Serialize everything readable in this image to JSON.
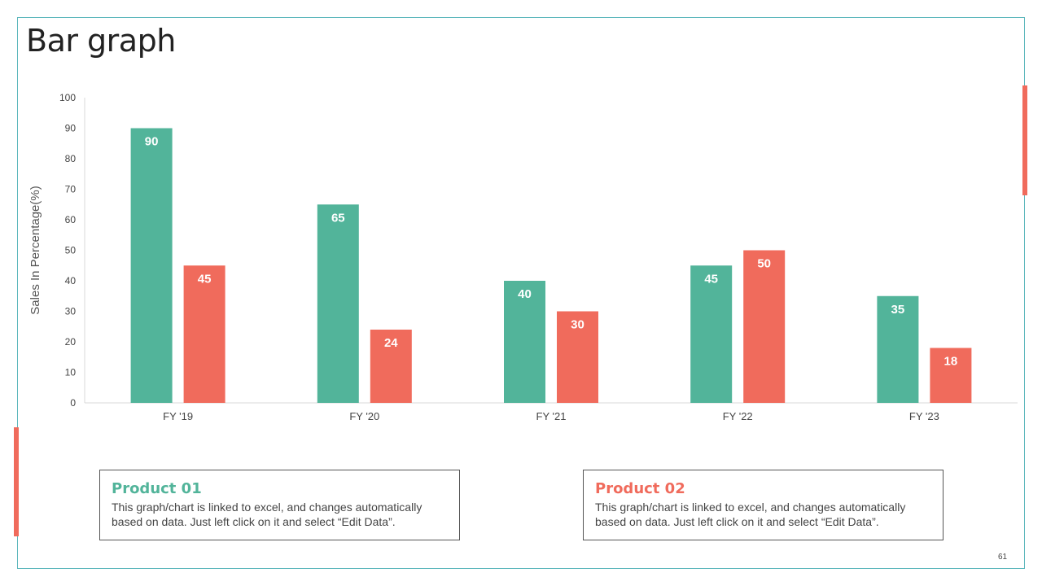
{
  "slide": {
    "title": "Bar graph",
    "page_number": "61"
  },
  "colors": {
    "product1": "#52b49a",
    "product2": "#f06b5c",
    "frame": "#5fb8bd"
  },
  "chart_data": {
    "type": "bar",
    "categories": [
      "FY '19",
      "FY '20",
      "FY '21",
      "FY '22",
      "FY '23"
    ],
    "series": [
      {
        "name": "Product 01",
        "values": [
          90,
          65,
          40,
          45,
          35
        ]
      },
      {
        "name": "Product 02",
        "values": [
          45,
          24,
          30,
          50,
          18
        ]
      }
    ],
    "ylabel": "Sales In Percentage(%)",
    "ylim": [
      0,
      100
    ],
    "yticks": [
      0,
      10,
      20,
      30,
      40,
      50,
      60,
      70,
      80,
      90,
      100
    ],
    "grid": false,
    "data_labels": true
  },
  "products": [
    {
      "title": "Product 01",
      "text": "This graph/chart is linked to excel, and changes automatically based on data. Just left click on it and select “Edit Data”."
    },
    {
      "title": "Product 02",
      "text": "This graph/chart is linked to excel, and changes automatically based on data. Just left click on it and select “Edit Data”."
    }
  ]
}
